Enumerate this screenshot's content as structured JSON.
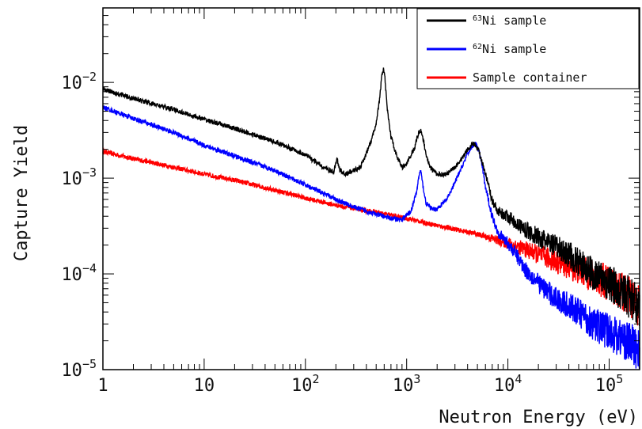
{
  "chart_data": {
    "type": "line",
    "xlabel": "Neutron Energy  (eV)",
    "ylabel": "Capture Yield",
    "x_scale": "log",
    "y_scale": "log",
    "xlim": [
      1,
      200000
    ],
    "ylim": [
      1e-05,
      0.06
    ],
    "x_ticks": [
      {
        "value": 1,
        "base": "1",
        "exp": ""
      },
      {
        "value": 10,
        "base": "10",
        "exp": ""
      },
      {
        "value": 100,
        "base": "10",
        "exp": "2"
      },
      {
        "value": 1000,
        "base": "10",
        "exp": "3"
      },
      {
        "value": 10000,
        "base": "10",
        "exp": "4"
      },
      {
        "value": 100000,
        "base": "10",
        "exp": "5"
      }
    ],
    "y_ticks": [
      {
        "value": 1e-05,
        "base": "10",
        "exp": "−5"
      },
      {
        "value": 0.0001,
        "base": "10",
        "exp": "−4"
      },
      {
        "value": 0.001,
        "base": "10",
        "exp": "−3"
      },
      {
        "value": 0.01,
        "base": "10",
        "exp": "−2"
      }
    ],
    "legend_position": "top-right",
    "series": [
      {
        "name_sup": "63",
        "name": "Ni sample",
        "color": "#000000",
        "x": [
          1,
          2,
          5,
          10,
          20,
          50,
          100,
          150,
          190,
          205,
          220,
          250,
          300,
          350,
          380,
          400,
          420,
          450,
          500,
          540,
          570,
          590,
          610,
          640,
          700,
          800,
          900,
          1000,
          1200,
          1300,
          1380,
          1450,
          1550,
          1700,
          2000,
          2500,
          3000,
          3500,
          4000,
          4500,
          4800,
          5200,
          5600,
          6000,
          6500,
          7000,
          8000,
          9000,
          9500,
          10000,
          12000,
          15000,
          20000,
          30000,
          40000,
          50000,
          70000,
          100000,
          150000,
          200000
        ],
        "values": [
          0.0085,
          0.0068,
          0.0052,
          0.0041,
          0.0033,
          0.0024,
          0.00175,
          0.0013,
          0.00115,
          0.0016,
          0.0012,
          0.0011,
          0.0012,
          0.0013,
          0.0016,
          0.0018,
          0.0021,
          0.0025,
          0.0038,
          0.0066,
          0.012,
          0.014,
          0.011,
          0.0055,
          0.0027,
          0.0017,
          0.0013,
          0.0014,
          0.0021,
          0.0029,
          0.0032,
          0.0026,
          0.0018,
          0.0013,
          0.0011,
          0.0011,
          0.0013,
          0.0016,
          0.002,
          0.0023,
          0.0022,
          0.0019,
          0.0014,
          0.0011,
          0.0008,
          0.00058,
          0.00045,
          0.00042,
          0.00041,
          0.0004,
          0.00034,
          0.00029,
          0.00024,
          0.00019,
          0.00016,
          0.00013,
          0.0001,
          8e-05,
          6e-05,
          4.5e-05
        ]
      },
      {
        "name_sup": "62",
        "name": "Ni sample",
        "color": "#0000ff",
        "x": [
          1,
          2,
          5,
          10,
          20,
          50,
          100,
          200,
          300,
          500,
          700,
          900,
          1100,
          1250,
          1330,
          1380,
          1430,
          1550,
          1800,
          2000,
          2500,
          3000,
          3500,
          4000,
          4500,
          4800,
          5200,
          5600,
          6000,
          7000,
          8000,
          10000,
          12000,
          15000,
          20000,
          30000,
          50000,
          70000,
          100000,
          150000,
          200000
        ],
        "values": [
          0.0055,
          0.0042,
          0.003,
          0.0022,
          0.0017,
          0.0012,
          0.00085,
          0.0006,
          0.0005,
          0.00042,
          0.00038,
          0.00037,
          0.00045,
          0.0007,
          0.0011,
          0.0012,
          0.0009,
          0.00055,
          0.00047,
          0.00048,
          0.0006,
          0.0009,
          0.0013,
          0.0018,
          0.0022,
          0.0023,
          0.0019,
          0.0013,
          0.0008,
          0.0004,
          0.00027,
          0.00021,
          0.00016,
          0.00011,
          8e-05,
          5.5e-05,
          4e-05,
          3e-05,
          2.5e-05,
          2e-05,
          1.6e-05
        ]
      },
      {
        "name_sup": "",
        "name": "Sample container",
        "color": "#ff0000",
        "x": [
          1,
          2,
          5,
          10,
          20,
          50,
          100,
          200,
          500,
          1000,
          2000,
          5000,
          10000,
          20000,
          50000,
          100000,
          150000,
          200000
        ],
        "values": [
          0.0019,
          0.0016,
          0.0013,
          0.0011,
          0.00095,
          0.00075,
          0.00062,
          0.00052,
          0.00044,
          0.00038,
          0.00032,
          0.00026,
          0.00021,
          0.00016,
          0.00011,
          8e-05,
          6e-05,
          4.5e-05
        ]
      }
    ]
  }
}
